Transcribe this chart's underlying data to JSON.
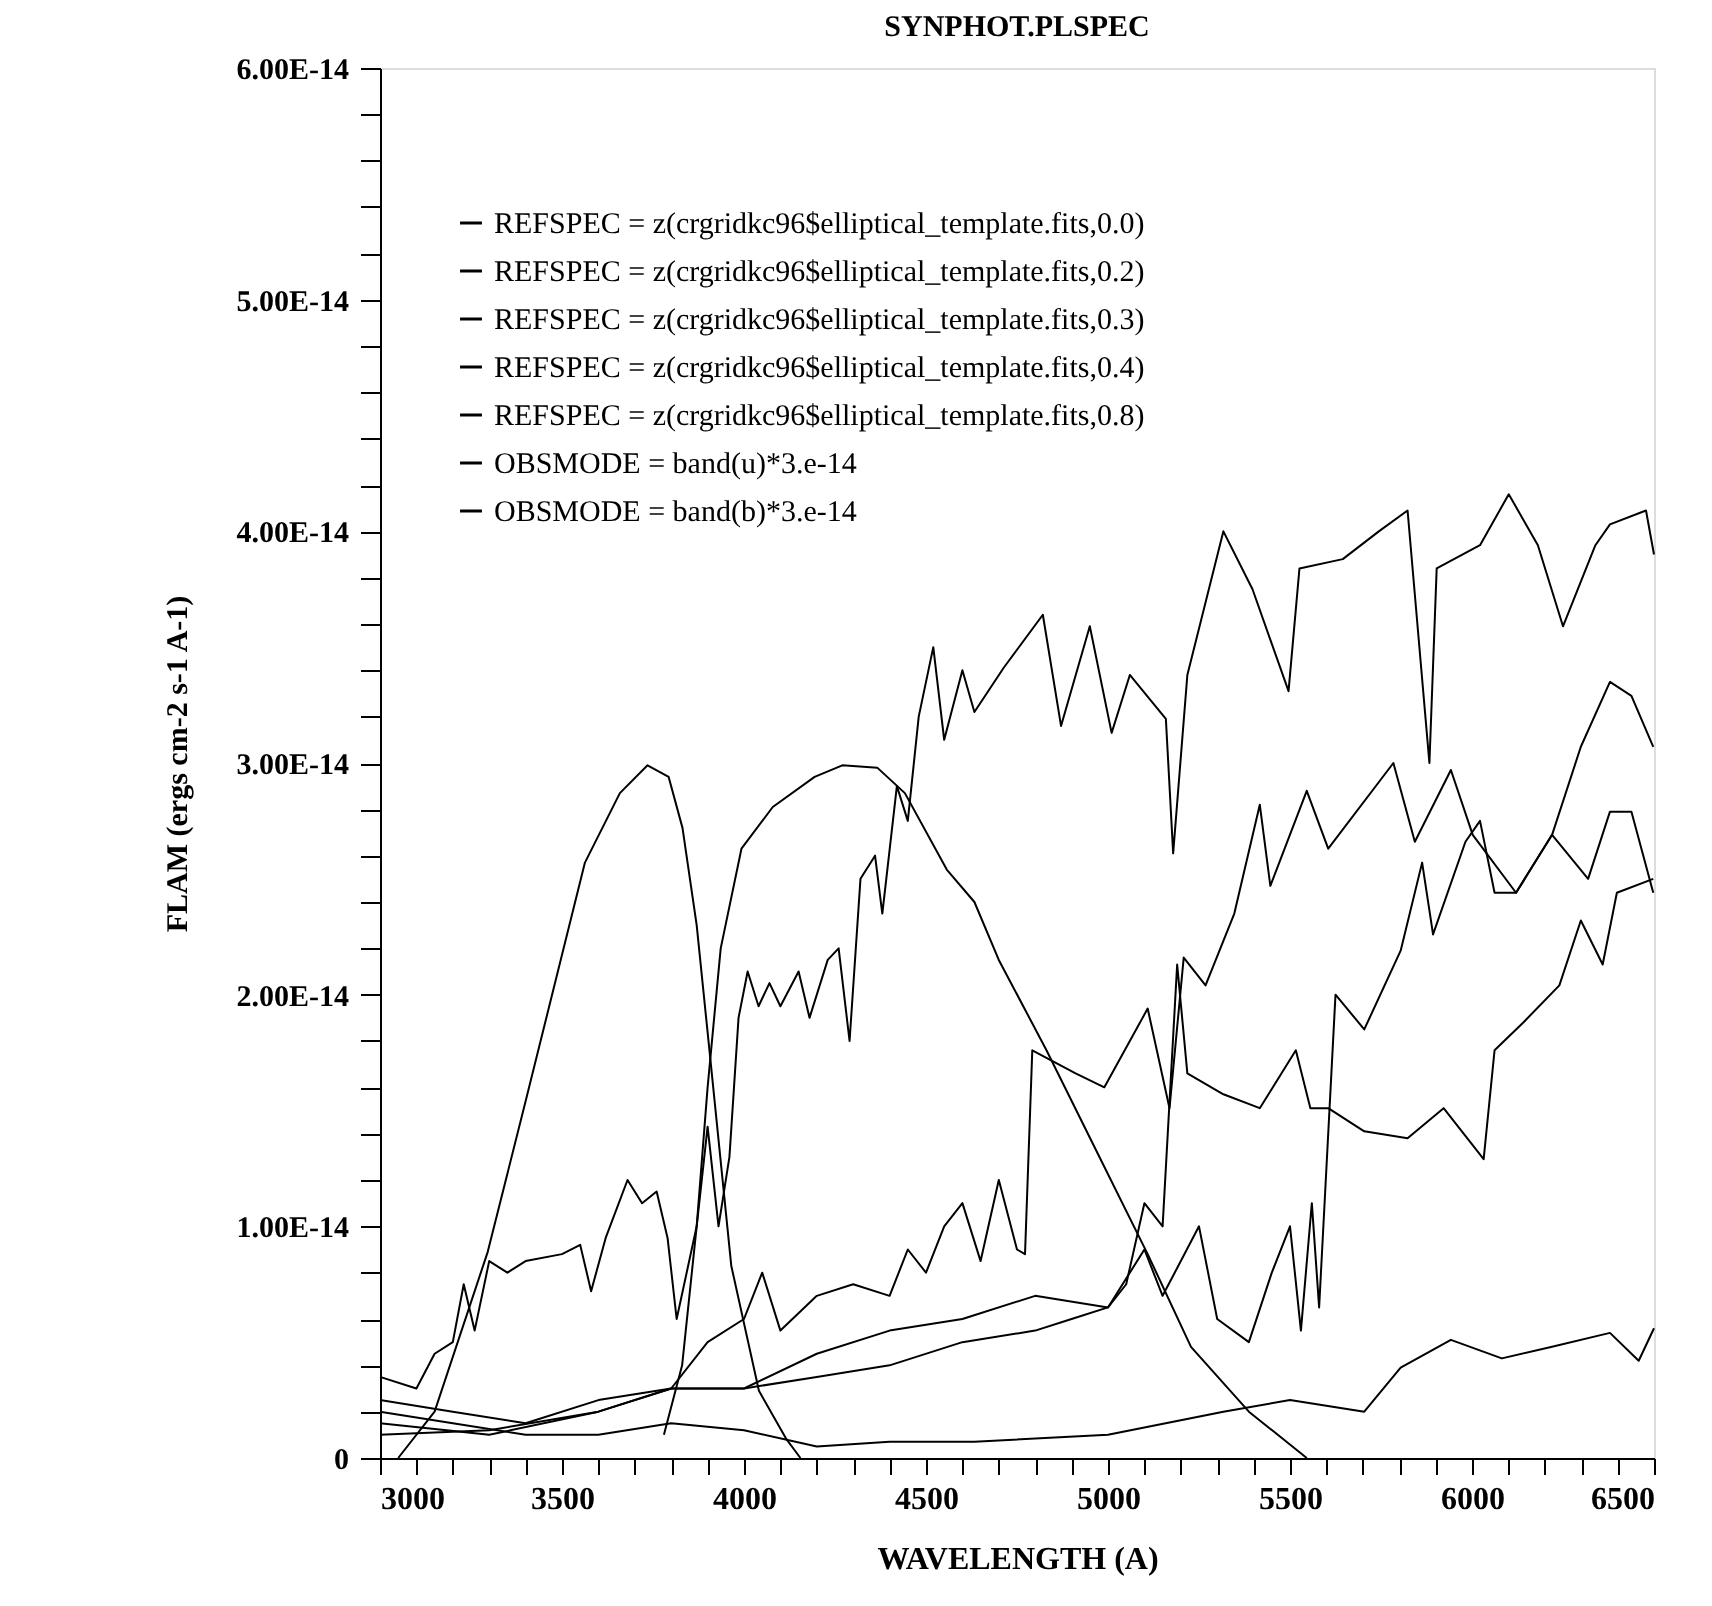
{
  "chart_data": {
    "type": "line",
    "title": "SYNPHOT.PLSPEC",
    "xlabel": "WAVELENGTH (A)",
    "ylabel": "FLAM (ergs cm-2 s-1 A-1)",
    "xlim": [
      3000,
      6500
    ],
    "ylim": [
      0,
      6e-14
    ],
    "xticks": [
      3000,
      {
        "value": 3100,
        "label": null
      },
      {
        "value": 3200,
        "label": null
      },
      {
        "value": 3300,
        "label": null
      },
      {
        "value": 3400,
        "label": null
      },
      3500,
      {
        "value": 3600,
        "label": null
      },
      {
        "value": 3700,
        "label": null
      },
      {
        "value": 3800,
        "label": null
      },
      {
        "value": 3900,
        "label": null
      },
      4000,
      {
        "value": 4100,
        "label": null
      },
      {
        "value": 4200,
        "label": null
      },
      {
        "value": 4300,
        "label": null
      },
      {
        "value": 4400,
        "label": null
      },
      4500,
      {
        "value": 4600,
        "label": null
      },
      {
        "value": 4700,
        "label": null
      },
      {
        "value": 4800,
        "label": null
      },
      {
        "value": 4900,
        "label": null
      },
      5000,
      {
        "value": 5100,
        "label": null
      },
      {
        "value": 5200,
        "label": null
      },
      {
        "value": 5300,
        "label": null
      },
      {
        "value": 5400,
        "label": null
      },
      5500,
      {
        "value": 5600,
        "label": null
      },
      {
        "value": 5700,
        "label": null
      },
      {
        "value": 5800,
        "label": null
      },
      {
        "value": 5900,
        "label": null
      },
      6000,
      {
        "value": 6100,
        "label": null
      },
      {
        "value": 6200,
        "label": null
      },
      {
        "value": 6300,
        "label": null
      },
      {
        "value": 6400,
        "label": null
      },
      6500
    ],
    "yticks": [
      0,
      {
        "value": 2e-15,
        "label": null
      },
      {
        "value": 4e-15,
        "label": null
      },
      {
        "value": 6e-15,
        "label": null
      },
      {
        "value": 8e-15,
        "label": null
      },
      {
        "value": 1e-14,
        "label": "1.00E-14"
      },
      {
        "value": 1.2e-14,
        "label": null
      },
      {
        "value": 1.4e-14,
        "label": null
      },
      {
        "value": 1.6e-14,
        "label": null
      },
      {
        "value": 1.8e-14,
        "label": null
      },
      {
        "value": 2e-14,
        "label": "2.00E-14"
      },
      {
        "value": 2.2e-14,
        "label": null
      },
      {
        "value": 2.4e-14,
        "label": null
      },
      {
        "value": 2.6e-14,
        "label": null
      },
      {
        "value": 2.8e-14,
        "label": null
      },
      {
        "value": 3e-14,
        "label": "3.00E-14"
      },
      {
        "value": 3.2e-14,
        "label": null
      },
      {
        "value": 3.4e-14,
        "label": null
      },
      {
        "value": 3.6e-14,
        "label": null
      },
      {
        "value": 3.8e-14,
        "label": null
      },
      {
        "value": 4e-14,
        "label": "4.00E-14"
      },
      {
        "value": 4.2e-14,
        "label": null
      },
      {
        "value": 4.4e-14,
        "label": null
      },
      {
        "value": 4.6e-14,
        "label": null
      },
      {
        "value": 4.8e-14,
        "label": null
      },
      {
        "value": 5e-14,
        "label": "5.00E-14"
      },
      {
        "value": 5.2e-14,
        "label": null
      },
      {
        "value": 5.4e-14,
        "label": null
      },
      {
        "value": 5.6e-14,
        "label": null
      },
      {
        "value": 5.8e-14,
        "label": null
      },
      {
        "value": 6e-14,
        "label": "6.00E-14"
      }
    ],
    "grid": false,
    "legend": "top left",
    "marker": "none",
    "line_style": "solid",
    "series": [
      {
        "name": "REFSPEC = z(crgridkc96$elliptical_template.fits,0.0)",
        "color": "#000000",
        "x": [
          3000,
          3100,
          3150,
          3200,
          3230,
          3260,
          3300,
          3350,
          3400,
          3500,
          3550,
          3580,
          3620,
          3680,
          3720,
          3760,
          3790,
          3815,
          3870,
          3900,
          3930,
          3960,
          3985,
          4010,
          4040,
          4070,
          4100,
          4150,
          4180,
          4230,
          4260,
          4290,
          4320,
          4360,
          4380,
          4420,
          4450,
          4480,
          4520,
          4550,
          4600,
          4633,
          4713,
          4821,
          4871,
          4950,
          5010,
          5060,
          5159,
          5179,
          5218,
          5317,
          5397,
          5496,
          5526,
          5645,
          5744,
          5823,
          5883,
          5903,
          6022,
          6101,
          6181,
          6250,
          6339,
          6379,
          6478,
          6500
        ],
        "values": [
          3.5e-15,
          3e-15,
          4.5e-15,
          5e-15,
          7.5e-15,
          5.5e-15,
          8.5e-15,
          8e-15,
          8.5e-15,
          8.8e-15,
          9.2e-15,
          7.2e-15,
          9.5e-15,
          1.2e-14,
          1.1e-14,
          1.15e-14,
          9.5e-15,
          6e-15,
          1e-14,
          1.43e-14,
          1e-14,
          1.3e-14,
          1.9e-14,
          2.1e-14,
          1.95e-14,
          2.05e-14,
          1.95e-14,
          2.1e-14,
          1.9e-14,
          2.15e-14,
          2.2e-14,
          1.8e-14,
          2.5e-14,
          2.6e-14,
          2.35e-14,
          2.9e-14,
          2.75e-14,
          3.2e-14,
          3.5e-14,
          3.1e-14,
          3.4e-14,
          3.22e-14,
          3.41e-14,
          3.64e-14,
          3.16e-14,
          3.59e-14,
          3.13e-14,
          3.38e-14,
          3.19e-14,
          2.61e-14,
          3.38e-14,
          4e-14,
          3.75e-14,
          3.31e-14,
          3.84e-14,
          3.88e-14,
          4e-14,
          4.09e-14,
          3e-14,
          3.84e-14,
          3.94e-14,
          4.16e-14,
          3.94e-14,
          3.59e-14,
          3.94e-14,
          4.03e-14,
          4.09e-14,
          3.9e-14
        ]
      },
      {
        "name": "REFSPEC = z(crgridkc96$elliptical_template.fits,0.2)",
        "color": "#000000",
        "x": [
          3000,
          3200,
          3400,
          3600,
          3800,
          3900,
          4000,
          4050,
          4100,
          4200,
          4300,
          4400,
          4450,
          4500,
          4550,
          4600,
          4650,
          4700,
          4750,
          4772,
          4792,
          4911,
          4990,
          5109,
          5169,
          5208,
          5268,
          5347,
          5417,
          5446,
          5546,
          5605,
          5784,
          5843,
          5942,
          6002,
          6121,
          6220,
          6299,
          6379,
          6438,
          6498
        ],
        "values": [
          2.5e-15,
          2e-15,
          1.5e-15,
          2.5e-15,
          3e-15,
          5e-15,
          6e-15,
          8e-15,
          5.5e-15,
          7e-15,
          7.5e-15,
          7e-15,
          9e-15,
          8e-15,
          1e-14,
          1.1e-14,
          8.5e-15,
          1.2e-14,
          9e-15,
          8.8e-15,
          1.76e-14,
          1.66e-14,
          1.6e-14,
          1.94e-14,
          1.51e-14,
          2.16e-14,
          2.04e-14,
          2.35e-14,
          2.82e-14,
          2.47e-14,
          2.88e-14,
          2.63e-14,
          3e-14,
          2.66e-14,
          2.97e-14,
          2.69e-14,
          2.44e-14,
          2.69e-14,
          3.07e-14,
          3.35e-14,
          3.29e-14,
          3.07e-14
        ]
      },
      {
        "name": "REFSPEC = z(crgridkc96$elliptical_template.fits,0.3)",
        "color": "#000000",
        "x": [
          3000,
          3300,
          3600,
          3800,
          4000,
          4200,
          4400,
          4600,
          4800,
          5000,
          5050,
          5100,
          5150,
          5190,
          5218,
          5317,
          5417,
          5516,
          5556,
          5605,
          5704,
          5823,
          5922,
          6032,
          6062,
          6141,
          6240,
          6299,
          6359,
          6398,
          6498
        ],
        "values": [
          1e-15,
          1.2e-15,
          2e-15,
          3e-15,
          3e-15,
          4.5e-15,
          5.5e-15,
          6e-15,
          7e-15,
          6.5e-15,
          7.5e-15,
          1.1e-14,
          1e-14,
          2.13e-14,
          1.66e-14,
          1.57e-14,
          1.51e-14,
          1.76e-14,
          1.51e-14,
          1.51e-14,
          1.41e-14,
          1.38e-14,
          1.51e-14,
          1.29e-14,
          1.76e-14,
          1.88e-14,
          2.04e-14,
          2.32e-14,
          2.13e-14,
          2.44e-14,
          2.5e-14
        ]
      },
      {
        "name": "REFSPEC = z(crgridkc96$elliptical_template.fits,0.4)",
        "color": "#000000",
        "x": [
          3000,
          3300,
          3600,
          3800,
          4000,
          4200,
          4400,
          4600,
          4800,
          4900,
          5000,
          5100,
          5150,
          5250,
          5300,
          5387,
          5450,
          5500,
          5530,
          5560,
          5580,
          5625,
          5704,
          5804,
          5863,
          5893,
          5982,
          6022,
          6062,
          6121,
          6220,
          6319,
          6379,
          6438,
          6498
        ],
        "values": [
          1.5e-15,
          1e-15,
          2e-15,
          3e-15,
          3e-15,
          3.5e-15,
          4e-15,
          5e-15,
          5.5e-15,
          6e-15,
          6.5e-15,
          9e-15,
          7e-15,
          1e-14,
          6e-15,
          5e-15,
          8e-15,
          1e-14,
          5.5e-15,
          1.1e-14,
          6.5e-15,
          2e-14,
          1.85e-14,
          2.19e-14,
          2.57e-14,
          2.26e-14,
          2.66e-14,
          2.75e-14,
          2.44e-14,
          2.44e-14,
          2.69e-14,
          2.5e-14,
          2.79e-14,
          2.79e-14,
          2.44e-14
        ]
      },
      {
        "name": "REFSPEC = z(crgridkc96$elliptical_template.fits,0.8)",
        "color": "#000000",
        "x": [
          3000,
          3200,
          3400,
          3600,
          3800,
          4000,
          4200,
          4400,
          4633,
          5000,
          5317,
          5500,
          5704,
          5804,
          5942,
          6082,
          6220,
          6379,
          6458,
          6500
        ],
        "values": [
          2e-15,
          1.5e-15,
          1e-15,
          1e-15,
          1.5e-15,
          1.2e-15,
          5e-16,
          7e-16,
          7e-16,
          1e-15,
          2e-15,
          2.5e-15,
          2e-15,
          3.9e-15,
          5.1e-15,
          4.3e-15,
          4.8e-15,
          5.4e-15,
          4.2e-15,
          5.6e-15
        ]
      },
      {
        "name": "OBSMODE = band(u)*3.e-14",
        "color": "#000000",
        "x": [
          3050,
          3150,
          3296,
          3400,
          3563,
          3659,
          3735,
          3793,
          3831,
          3870,
          3907,
          3965,
          4041,
          4117,
          4155
        ],
        "values": [
          0,
          2e-15,
          8.9e-15,
          1.54e-14,
          2.57e-14,
          2.87e-14,
          2.99e-14,
          2.94e-14,
          2.72e-14,
          2.3e-14,
          1.73e-14,
          8.3e-15,
          2.9e-15,
          8e-16,
          0
        ]
      },
      {
        "name": "OBSMODE = band(b)*3.e-14",
        "color": "#000000",
        "x": [
          3780,
          3830,
          3870,
          3900,
          3936,
          3993,
          4079,
          4194,
          4270,
          4366,
          4442,
          4557,
          4633,
          4700,
          4831,
          4970,
          5109,
          5228,
          5387,
          5546
        ],
        "values": [
          1e-15,
          4e-15,
          1e-14,
          1.6e-14,
          2.2e-14,
          2.63e-14,
          2.81e-14,
          2.94e-14,
          2.99e-14,
          2.98e-14,
          2.87e-14,
          2.54e-14,
          2.4e-14,
          2.15e-14,
          1.76e-14,
          1.32e-14,
          8.8e-15,
          4.8e-15,
          2e-15,
          0
        ]
      }
    ]
  }
}
